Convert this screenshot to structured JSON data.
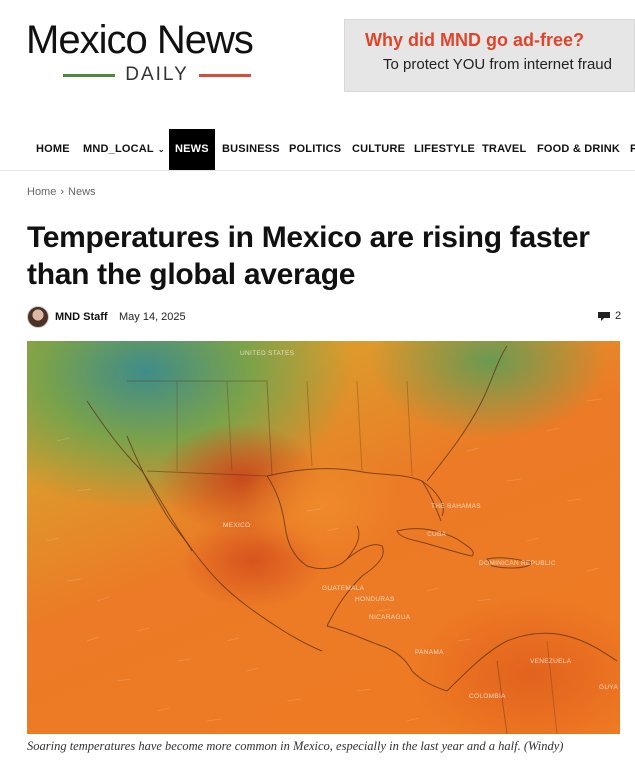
{
  "site": {
    "logo_title": "Mexico News",
    "logo_sub": "DAILY"
  },
  "ad": {
    "title": "Why did MND go ad-free?",
    "subtitle": "To protect YOU from internet fraud"
  },
  "nav": {
    "items": [
      {
        "label": "HOME"
      },
      {
        "label": "MND_LOCAL"
      },
      {
        "label": "NEWS"
      },
      {
        "label": "BUSINESS"
      },
      {
        "label": "POLITICS"
      },
      {
        "label": "CULTURE"
      },
      {
        "label": "LIFESTYLE"
      },
      {
        "label": "TRAVEL"
      },
      {
        "label": "FOOD & DRINK"
      },
      {
        "label": "F"
      }
    ],
    "active": "NEWS"
  },
  "breadcrumb": {
    "items": [
      "Home",
      "News"
    ],
    "separator": "›"
  },
  "article": {
    "title": "Temperatures in Mexico are rising faster than the global average",
    "author": "MND Staff",
    "date": "May 14, 2025",
    "comment_count": "2",
    "image_labels": {
      "united_states": "UNITED STATES",
      "mexico": "MEXICO",
      "bahamas": "THE BAHAMAS",
      "cuba": "CUBA",
      "dominican": "DOMINICAN REPUBLIC",
      "guatemala": "GUATEMALA",
      "honduras": "HONDURAS",
      "nicaragua": "NICARAGUA",
      "panama": "PANAMA",
      "venezuela": "VENEZUELA",
      "colombia": "COLOMBIA",
      "guyana": "GUYA"
    },
    "caption": "Soaring temperatures have become more common in Mexico, especially in the last year and a half. (Windy)"
  },
  "colors": {
    "nav_active_bg": "#000000",
    "ad_title": "#e0452b",
    "logo_green": "#4f8a3c",
    "logo_red": "#d4503c"
  }
}
